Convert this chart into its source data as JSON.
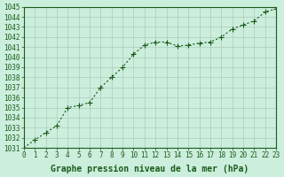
{
  "x": [
    0,
    1,
    2,
    3,
    4,
    5,
    6,
    7,
    8,
    9,
    10,
    11,
    12,
    13,
    14,
    15,
    16,
    17,
    18,
    19,
    20,
    21,
    22,
    23
  ],
  "y": [
    1031.0,
    1031.8,
    1032.5,
    1033.2,
    1035.0,
    1035.2,
    1035.5,
    1037.0,
    1038.0,
    1039.0,
    1040.3,
    1041.2,
    1041.5,
    1041.5,
    1041.1,
    1041.2,
    1041.4,
    1041.5,
    1042.0,
    1042.8,
    1043.2,
    1043.6,
    1044.5,
    1044.8
  ],
  "line_color": "#1a5c1a",
  "marker_color": "#1a5c1a",
  "bg_color": "#cceedd",
  "grid_color": "#aaccbb",
  "xlabel": "Graphe pression niveau de la mer (hPa)",
  "ylim_min": 1031,
  "ylim_max": 1045,
  "xlim_min": 0,
  "xlim_max": 23,
  "ytick_step": 1,
  "xlabel_fontsize": 7,
  "tick_fontsize": 5.5,
  "label_color": "#1a5c1a"
}
